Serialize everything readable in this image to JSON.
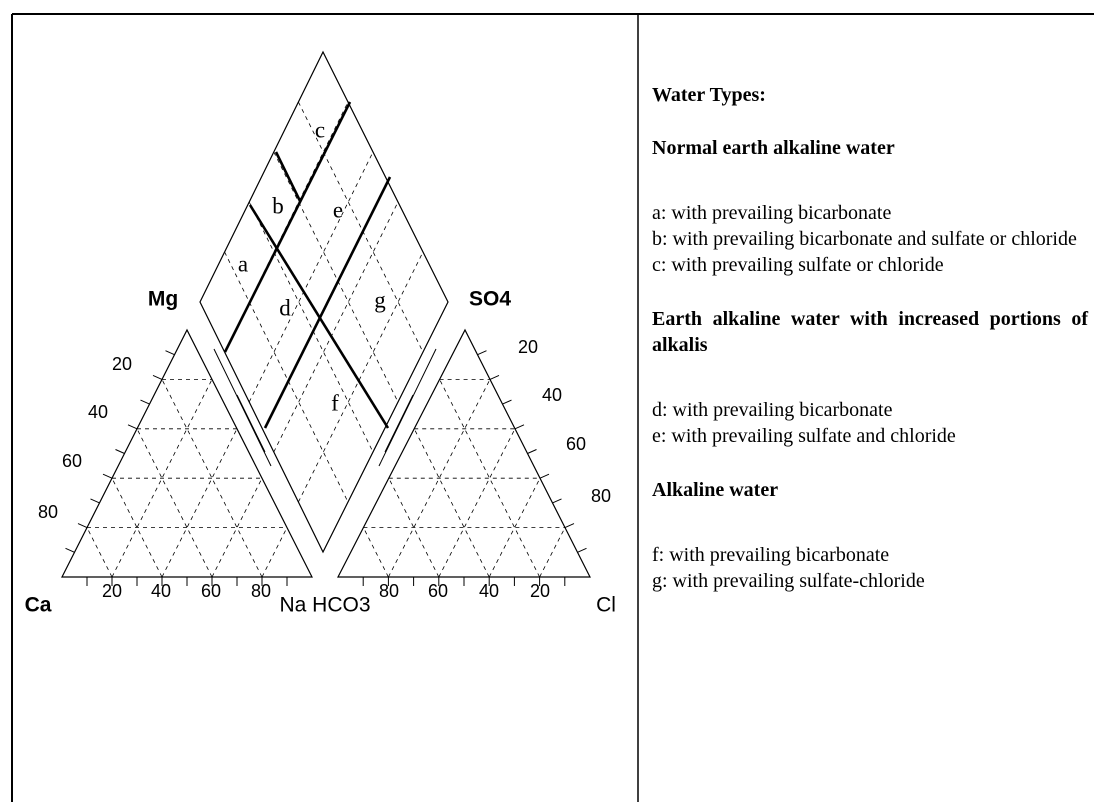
{
  "diagram": {
    "corner_labels": {
      "mg": "Mg",
      "so4": "SO4",
      "ca": "Ca",
      "na_hco3": "Na HCO3",
      "cl": "Cl"
    },
    "left_axis_ticks": [
      20,
      40,
      60,
      80
    ],
    "bottom_left_ticks": [
      20,
      40,
      60,
      80
    ],
    "bottom_right_ticks": [
      80,
      60,
      40,
      20
    ],
    "right_axis_ticks": [
      20,
      40,
      60,
      80
    ],
    "regions": [
      "a",
      "b",
      "c",
      "d",
      "e",
      "f",
      "g"
    ]
  },
  "legend": {
    "title": "Water Types:",
    "groups": [
      {
        "heading": "Normal earth alkaline water",
        "items": [
          "a: with prevailing bicarbonate",
          "b: with prevailing bicarbonate and sulfate or chloride",
          "c: with prevailing sulfate or chloride"
        ]
      },
      {
        "heading": "Earth alkaline water with increased portions of alkalis",
        "items": [
          "d: with prevailing bicarbonate",
          "e: with prevailing sulfate and chloride"
        ]
      },
      {
        "heading": "Alkaline water",
        "items": [
          "f: with prevailing bicarbonate",
          "g: with prevailing sulfate-chloride"
        ]
      }
    ]
  }
}
